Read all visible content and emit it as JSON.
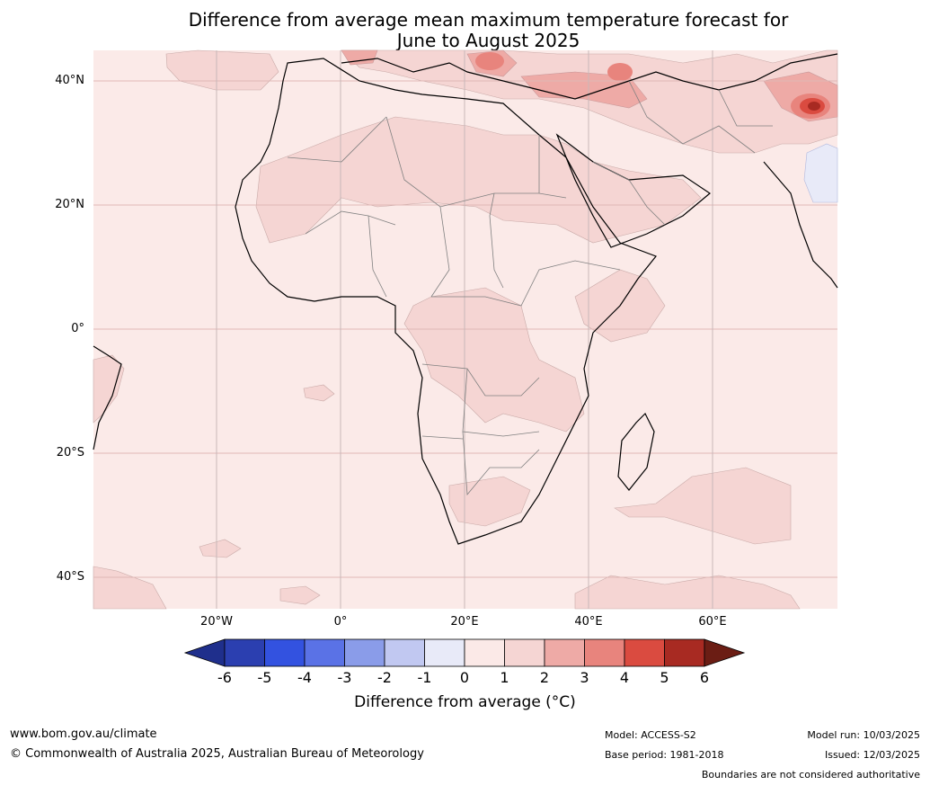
{
  "title_line1": "Difference from average mean maximum temperature forecast for",
  "title_line2": "June to August 2025",
  "lat_labels": [
    "40°N",
    "20°N",
    "0°",
    "20°S",
    "40°S"
  ],
  "lon_labels": [
    "20°W",
    "0°",
    "20°E",
    "40°E",
    "60°E"
  ],
  "colorbar": {
    "ticks": [
      "-6",
      "-5",
      "-4",
      "-3",
      "-2",
      "-1",
      "0",
      "1",
      "2",
      "3",
      "4",
      "5",
      "6"
    ],
    "colors": [
      "#1f2f8c",
      "#2b3fb0",
      "#3352e0",
      "#5a72e6",
      "#8a9ce9",
      "#c1c8f1",
      "#e8eaf8",
      "#fbe9e7",
      "#f5d5d3",
      "#eeaaa6",
      "#e8847d",
      "#da4b40",
      "#a82a22",
      "#6b1d14"
    ],
    "label": "Difference from average (°C)"
  },
  "footer": {
    "url": "www.bom.gov.au/climate",
    "copyright": "© Commonwealth of Australia 2025, Australian Bureau of Meteorology",
    "model": "Model: ACCESS-S2",
    "base_period": "Base period: 1981-2018",
    "model_run": "Model run: 10/03/2025",
    "issued": "Issued: 12/03/2025",
    "disclaimer": "Boundaries are not considered authoritative"
  }
}
